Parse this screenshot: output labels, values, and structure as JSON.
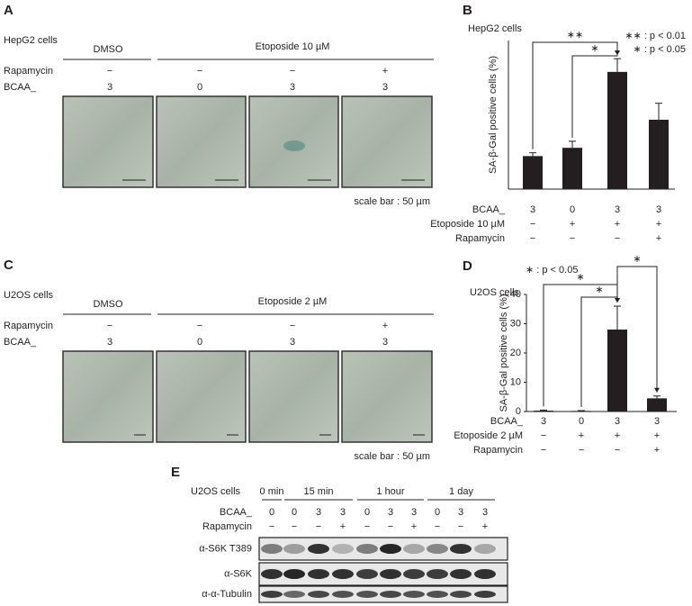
{
  "panels": {
    "A": {
      "label": "A",
      "cell_line": "HepG2 cells",
      "groups": [
        "DMSO",
        "Etoposide 10 µM"
      ],
      "rows": [
        {
          "name": "Rapamycin",
          "values": [
            "−",
            "−",
            "−",
            "+"
          ]
        },
        {
          "name": "BCAA_",
          "values": [
            "3",
            "0",
            "3",
            "3"
          ]
        }
      ],
      "scale_note": "scale bar : 50 µm"
    },
    "C": {
      "label": "C",
      "cell_line": "U2OS cells",
      "groups": [
        "DMSO",
        "Etoposide 2 µM"
      ],
      "rows": [
        {
          "name": "Rapamycin",
          "values": [
            "−",
            "−",
            "−",
            "+"
          ]
        },
        {
          "name": "BCAA_",
          "values": [
            "3",
            "0",
            "3",
            "3"
          ]
        }
      ],
      "scale_note": "scale bar : 50 µm"
    },
    "E": {
      "label": "E",
      "cell_line": "U2OS cells",
      "times": [
        "0 min",
        "15 min",
        "1 hour",
        "1 day"
      ],
      "rows": [
        {
          "name": "BCAA_",
          "values": [
            "0",
            "0",
            "3",
            "3",
            "0",
            "3",
            "3",
            "0",
            "3",
            "3"
          ]
        },
        {
          "name": "Rapamycin",
          "values": [
            "−",
            "−",
            "−",
            "+",
            "−",
            "−",
            "+",
            "−",
            "−",
            "+"
          ]
        }
      ],
      "blots": [
        "α-S6K T389",
        "α-S6K",
        "α-α-Tubulin"
      ]
    }
  },
  "chart_data": [
    {
      "type": "bar",
      "panel": "B",
      "title": "HepG2 cells",
      "y_label": "SA-β-Gal positive cells (%)",
      "values": [
        20,
        25,
        71,
        42
      ],
      "errors": [
        2,
        4,
        8,
        10
      ],
      "color": "#231f20",
      "ylim": [
        0,
        90
      ],
      "treatments": [
        {
          "name": "BCAA_",
          "values": [
            "3",
            "0",
            "3",
            "3"
          ]
        },
        {
          "name": "Etoposide 10 µM",
          "values": [
            "−",
            "+",
            "+",
            "+"
          ]
        },
        {
          "name": "Rapamycin",
          "values": [
            "−",
            "−",
            "−",
            "+"
          ]
        }
      ],
      "annotations": [
        "∗∗",
        "∗"
      ],
      "p_legend": [
        "∗∗ : p < 0.01",
        "∗ : p < 0.05"
      ]
    },
    {
      "type": "bar",
      "panel": "D",
      "title": "U2OS cells",
      "y_label": "SA-β-Gal positive cells (%)",
      "values": [
        0.3,
        0.2,
        28,
        4.5
      ],
      "errors": [
        0.2,
        0.1,
        8,
        0.8
      ],
      "color": "#231f20",
      "ylim": [
        0,
        40
      ],
      "yticks": [
        0,
        10,
        20,
        30,
        40
      ],
      "treatments": [
        {
          "name": "BCAA_",
          "values": [
            "3",
            "0",
            "3",
            "3"
          ]
        },
        {
          "name": "Etoposide 2 µM",
          "values": [
            "−",
            "+",
            "+",
            "+"
          ]
        },
        {
          "name": "Rapamycin",
          "values": [
            "−",
            "−",
            "−",
            "+"
          ]
        }
      ],
      "annotations": [
        "∗",
        "∗",
        "∗"
      ],
      "p_legend": [
        "∗ : p < 0.05"
      ]
    }
  ]
}
